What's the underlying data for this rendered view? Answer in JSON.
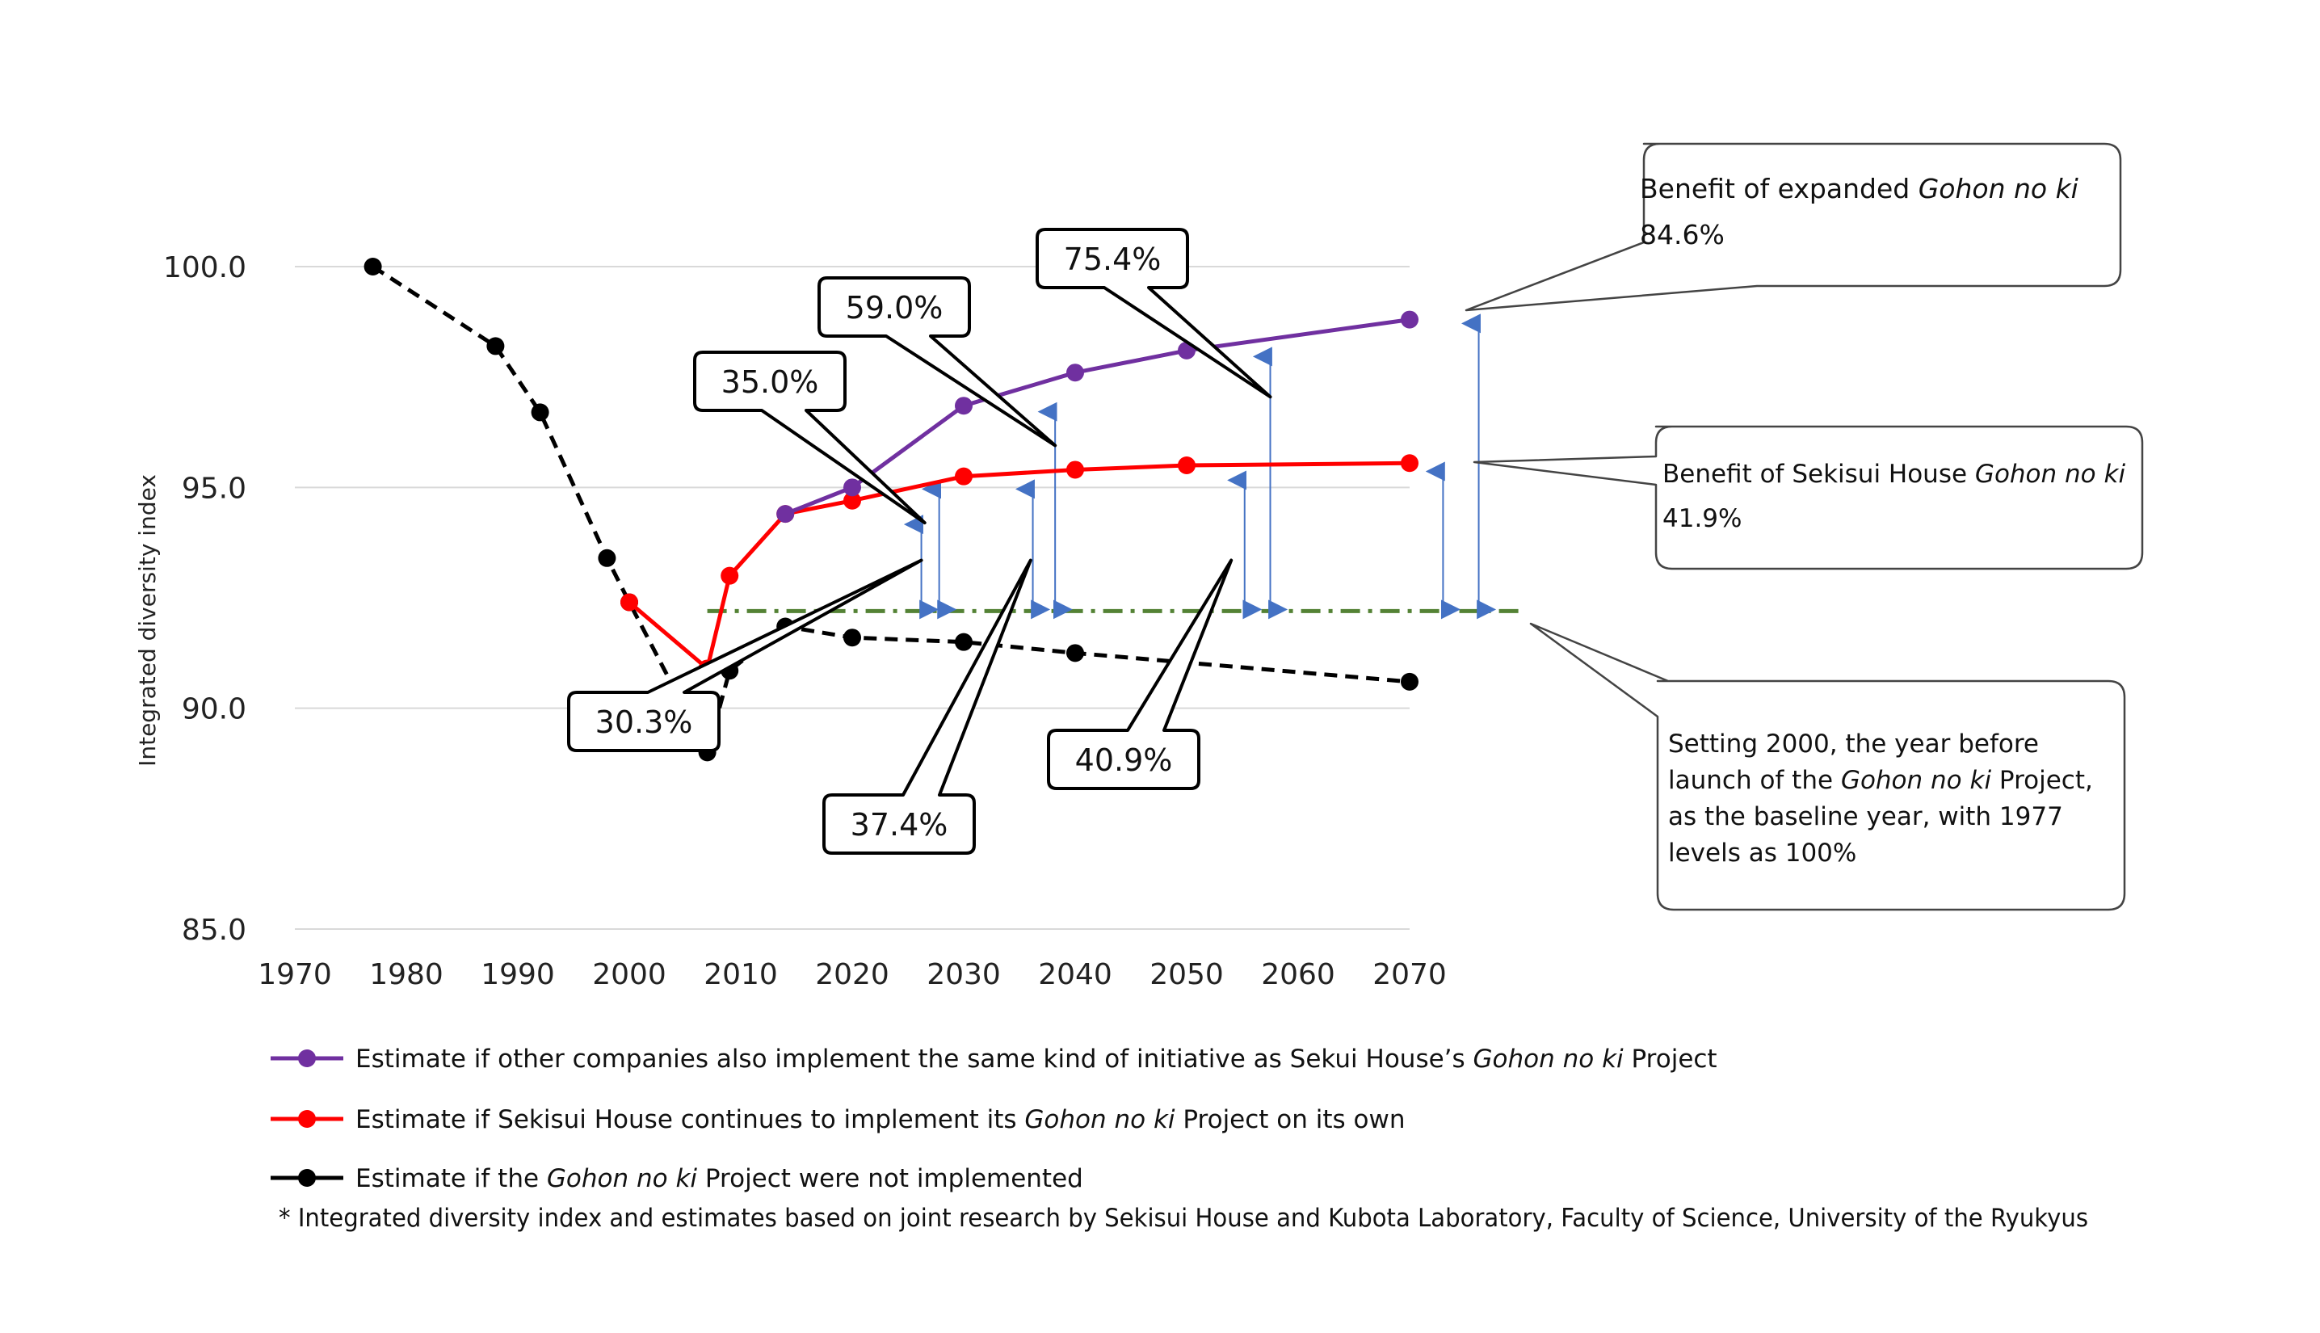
{
  "chart_data": {
    "type": "line",
    "ylabel": "Integrated diversity index",
    "xlabel": "",
    "xlim": [
      1970,
      2070
    ],
    "ylim": [
      85,
      100
    ],
    "x_ticks": [
      "1970",
      "1980",
      "1990",
      "2000",
      "2010",
      "2020",
      "2030",
      "2040",
      "2050",
      "2060",
      "2070"
    ],
    "y_ticks": [
      "85.0",
      "90.0",
      "95.0",
      "100.0"
    ],
    "grid": "horizontal",
    "baseline": {
      "y": 92.2,
      "x_start": 2007,
      "x_end": 2080,
      "color": "#548235",
      "style": "dash-dot"
    },
    "series": [
      {
        "name": "Estimate if other companies also implement the same kind of initiative as Sekui House’s Gohon no ki Project",
        "color": "#7030a0",
        "dashed": false,
        "points": [
          [
            2014,
            94.4
          ],
          [
            2020,
            95.0
          ],
          [
            2030,
            96.85
          ],
          [
            2040,
            97.6
          ],
          [
            2050,
            98.1
          ],
          [
            2070,
            98.8
          ]
        ]
      },
      {
        "name": "Estimate if Sekisui House continues to implement its Gohon no ki Project on its own",
        "color": "#ff0000",
        "dashed": false,
        "points": [
          [
            2000,
            92.4
          ],
          [
            2007,
            90.9
          ],
          [
            2009,
            93.0
          ],
          [
            2014,
            94.4
          ],
          [
            2020,
            94.7
          ],
          [
            2030,
            95.25
          ],
          [
            2040,
            95.4
          ],
          [
            2050,
            95.5
          ],
          [
            2070,
            95.55
          ]
        ]
      },
      {
        "name": "Estimate if the Gohon no ki Project were not implemented",
        "color": "#000000",
        "dashed": true,
        "points": [
          [
            1977,
            100.0
          ],
          [
            1988,
            98.2
          ],
          [
            1992,
            96.7
          ],
          [
            1998,
            93.4
          ],
          [
            2000,
            92.4
          ],
          [
            2007,
            89.0
          ],
          [
            2009,
            90.85
          ],
          [
            2014,
            91.85
          ],
          [
            2020,
            91.6
          ],
          [
            2030,
            91.5
          ],
          [
            2040,
            91.25
          ],
          [
            2070,
            90.6
          ]
        ]
      }
    ],
    "arrows": [
      {
        "x": 2026.2,
        "y_top": 94.2,
        "y_bottom": 92.2
      },
      {
        "x": 2027.8,
        "y_top": 95.0,
        "y_bottom": 92.2
      },
      {
        "x": 2036.2,
        "y_top": 95.0,
        "y_bottom": 92.2
      },
      {
        "x": 2038.2,
        "y_top": 96.75,
        "y_bottom": 92.2
      },
      {
        "x": 2055.2,
        "y_top": 95.2,
        "y_bottom": 92.2
      },
      {
        "x": 2057.5,
        "y_top": 98.0,
        "y_bottom": 92.2
      },
      {
        "x": 2073.0,
        "y_top": 95.4,
        "y_bottom": 92.2
      },
      {
        "x": 2076.2,
        "y_top": 98.75,
        "y_bottom": 92.2
      }
    ],
    "annotations": [
      {
        "text": "30.3%",
        "anchor_x": 2026.2,
        "anchor_y": 93.35
      },
      {
        "text": "35.0%",
        "anchor_x": 2026.5,
        "anchor_y": 94.2
      },
      {
        "text": "37.4%",
        "anchor_x": 2036.0,
        "anchor_y": 93.35
      },
      {
        "text": "59.0%",
        "anchor_x": 2038.2,
        "anchor_y": 95.95
      },
      {
        "text": "40.9%",
        "anchor_x": 2054.0,
        "anchor_y": 93.35
      },
      {
        "text": "75.4%",
        "anchor_x": 2057.5,
        "anchor_y": 97.05
      }
    ],
    "notes": {
      "expanded_title": "Benefit of expanded ",
      "expanded_italic": "Gohon no ki",
      "expanded_value": "84.6%",
      "sekisui_title": "Benefit of Sekisui House ",
      "sekisui_italic": "Gohon no ki",
      "sekisui_value": "41.9%",
      "baseline_line1": "Setting 2000, the year before",
      "baseline_line2_a": "launch of the ",
      "baseline_line2_italic": "Gohon no ki",
      "baseline_line2_b": " Project,",
      "baseline_line3": "as the baseline year, with 1977",
      "baseline_line4": "levels as 100%"
    },
    "legend": [
      {
        "pre": "Estimate if other companies also implement the same kind of initiative as Sekui House’s ",
        "italic": "Gohon no ki",
        "post": " Project"
      },
      {
        "pre": "Estimate if Sekisui House continues to implement its ",
        "italic": "Gohon no ki",
        "post": " Project on its own"
      },
      {
        "pre": "Estimate if the ",
        "italic": "Gohon no ki",
        "post": " Project were not implemented"
      }
    ],
    "footnote": "* Integrated diversity index and estimates based on joint research by Sekisui House and Kubota Laboratory, Faculty of Science, University of the Ryukyus"
  }
}
